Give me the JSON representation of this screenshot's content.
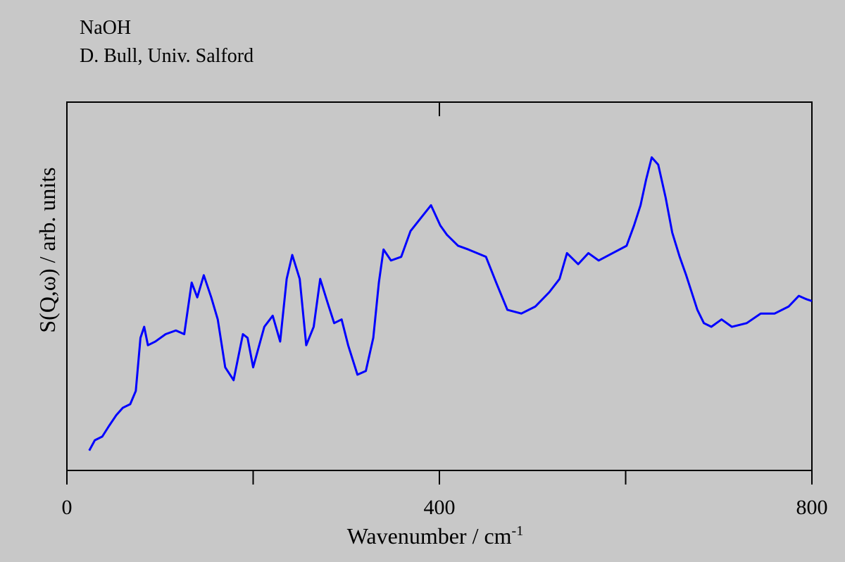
{
  "chart_data": {
    "type": "line",
    "title": "NaOH",
    "subtitle": "D. Bull, Univ. Salford",
    "xlabel": "Wavenumber / cm",
    "xlabel_superscript": "-1",
    "ylabel": "S(Q,ω) / arb. units",
    "xlim": [
      0,
      800
    ],
    "xticks": [
      0,
      400,
      800
    ],
    "xminor_ticks": [
      200,
      600
    ],
    "ylim": [
      0,
      100
    ],
    "grid": false,
    "series": [
      {
        "color": "#0000ff",
        "x": [
          24,
          30,
          38,
          45,
          53,
          60,
          68,
          74,
          79,
          83,
          87,
          95,
          106,
          117,
          126,
          134,
          140,
          147,
          155,
          162,
          170,
          179,
          189,
          194,
          200,
          212,
          221,
          229,
          236,
          242,
          250,
          257,
          265,
          272,
          280,
          287,
          295,
          302,
          312,
          321,
          329,
          335,
          340,
          348,
          359,
          369,
          380,
          391,
          401,
          408,
          420,
          431,
          450,
          461,
          473,
          488,
          503,
          518,
          529,
          537,
          549,
          560,
          571,
          586,
          601,
          609,
          616,
          622,
          628,
          635,
          643,
          650,
          658,
          665,
          677,
          684,
          692,
          703,
          714,
          730,
          745,
          760,
          775,
          786,
          794,
          800
        ],
        "values": [
          5.4,
          8.2,
          9.2,
          12,
          15,
          17,
          18,
          21.6,
          36,
          39,
          34,
          35,
          37,
          38,
          37,
          51,
          47,
          53,
          47,
          41,
          28,
          24.5,
          37,
          36,
          28,
          39,
          42,
          35,
          52,
          58.5,
          52,
          34,
          39,
          52,
          45.5,
          40,
          41,
          34,
          26,
          27,
          36,
          51,
          60,
          57,
          58,
          65,
          68.5,
          72,
          66.5,
          64,
          61,
          60,
          58,
          51,
          43.6,
          42.6,
          44.5,
          48.4,
          52,
          59,
          56,
          59,
          57,
          59,
          61,
          66.5,
          72,
          79,
          85,
          83,
          74,
          64.6,
          58,
          53,
          43.6,
          40,
          39,
          41,
          39,
          40,
          42.6,
          42.6,
          44.5,
          47.4,
          46.5,
          46
        ]
      }
    ]
  }
}
